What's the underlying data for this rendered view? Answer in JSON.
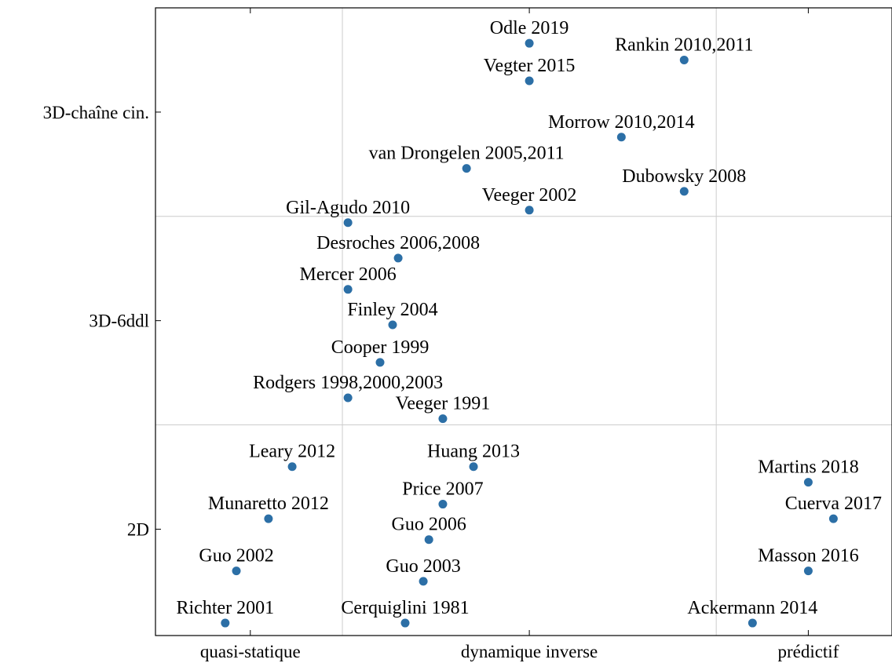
{
  "chart_data": {
    "type": "scatter",
    "point_labels": [
      "Odle 2019",
      "Rankin 2010,2011",
      "Vegter 2015",
      "Morrow 2010,2014",
      "van Drongelen 2005,2011",
      "Dubowsky 2008",
      "Veeger 2002",
      "Gil-Agudo 2010",
      "Desroches 2006,2008",
      "Mercer 2006",
      "Finley 2004",
      "Cooper 1999",
      "Rodgers 1998,2000,2003",
      "Veeger 1991",
      "Leary 2012",
      "Huang 2013",
      "Martins 2018",
      "Price 2007",
      "Munaretto 2012",
      "Cuerva 2017",
      "Guo 2006",
      "Guo 2002",
      "Masson 2016",
      "Guo 2003",
      "Richter 2001",
      "Cerquiglini 1981",
      "Ackermann 2014"
    ],
    "x": [
      2.0,
      2.555,
      2.0,
      2.33,
      1.775,
      2.555,
      2.0,
      1.35,
      1.53,
      1.35,
      1.51,
      1.465,
      1.35,
      1.69,
      1.15,
      1.8,
      3.0,
      1.69,
      1.065,
      3.09,
      1.64,
      0.95,
      3.0,
      1.62,
      0.91,
      1.555,
      2.8
    ],
    "values": [
      3.33,
      3.25,
      3.15,
      2.88,
      2.73,
      2.62,
      2.53,
      2.47,
      2.3,
      2.15,
      1.98,
      1.8,
      1.63,
      1.53,
      1.3,
      1.3,
      1.225,
      1.12,
      1.05,
      1.05,
      0.95,
      0.8,
      0.8,
      0.75,
      0.55,
      0.55,
      0.55
    ],
    "color": "#2c6fa6",
    "xlim": [
      0.66,
      3.3
    ],
    "ylim": [
      0.49,
      3.5
    ],
    "xticks": [
      {
        "value": 1,
        "label": "quasi-statique"
      },
      {
        "value": 2,
        "label": "dynamique inverse"
      },
      {
        "value": 3,
        "label": "prédictif"
      }
    ],
    "yticks": [
      {
        "value": 1,
        "label": "2D"
      },
      {
        "value": 2,
        "label": "3D-6ddl"
      },
      {
        "value": 3,
        "label": "3D-chaîne cin."
      }
    ],
    "xgrid": [
      1.33,
      2.67
    ],
    "ygrid": [
      1.5,
      2.5
    ]
  }
}
